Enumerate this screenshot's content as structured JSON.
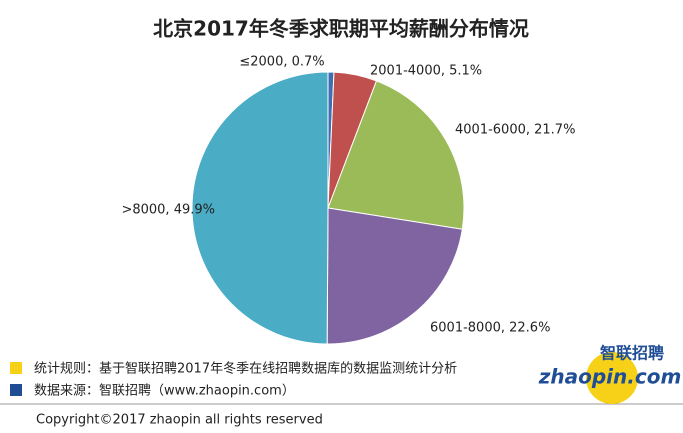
{
  "chart_data": {
    "type": "pie",
    "title": "北京2017年冬季求职期平均薪酬分布情况",
    "values": [
      0.7,
      5.1,
      21.7,
      22.6,
      49.9
    ],
    "value_labels": [
      "≤2000, 0.7%",
      "2001-4000, 5.1%",
      "4001-6000, 21.7%",
      "6001-8000, 22.6%",
      ">8000, 49.9%"
    ],
    "colors": [
      "#3f6fb0",
      "#c0504d",
      "#9bbb59",
      "#8064a2",
      "#4bacc6"
    ]
  },
  "notes": [
    "统计规则：基于智联招聘2017年冬季在线招聘数据库的数据监测统计分析",
    "数据来源：智联招聘（www.zhaopin.com）"
  ],
  "logo": {
    "name": "智联招聘",
    "site": "zhaopin.com"
  },
  "copyright": "Copyright©2017 zhaopin all rights reserved"
}
